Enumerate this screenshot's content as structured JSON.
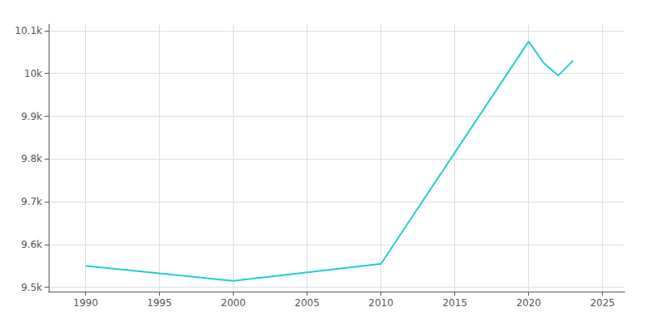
{
  "chart_data": {
    "type": "line",
    "x": [
      1990,
      2000,
      2010,
      2020,
      2021,
      2022,
      2023
    ],
    "values": [
      9550,
      9515,
      9555,
      10075,
      10025,
      9995,
      10030
    ],
    "color": "#22cdd0",
    "xlim": [
      1987.5,
      2026.5
    ],
    "xticks": [
      1990,
      1995,
      2000,
      2005,
      2010,
      2015,
      2020,
      2025
    ],
    "ylim": [
      9490,
      10115
    ],
    "yticks": [
      {
        "value": 9500,
        "label": "9.5k"
      },
      {
        "value": 9600,
        "label": "9.6k"
      },
      {
        "value": 9700,
        "label": "9.7k"
      },
      {
        "value": 9800,
        "label": "9.8k"
      },
      {
        "value": 9900,
        "label": "9.9k"
      },
      {
        "value": 10000,
        "label": "10k"
      },
      {
        "value": 10100,
        "label": "10.1k"
      }
    ],
    "grid": true
  }
}
